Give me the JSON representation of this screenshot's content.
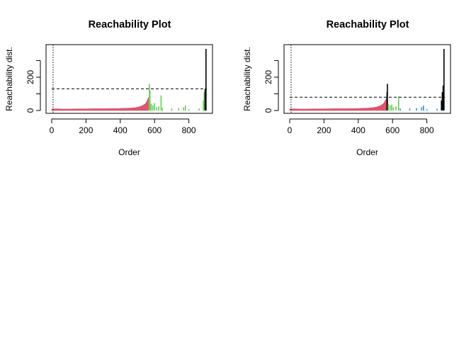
{
  "chart_data": [
    {
      "type": "bar",
      "title": "Reachability Plot",
      "xlabel": "Order",
      "ylabel": "Reachability dist.",
      "xlim": [
        0,
        905
      ],
      "ylim": [
        0,
        370
      ],
      "x_ticks": [
        0,
        200,
        400,
        600,
        800
      ],
      "y_ticks": [
        0,
        200
      ],
      "y_minor_ticks": [
        100,
        300
      ],
      "threshold": 130,
      "colors": {
        "cluster1": "#DF536B",
        "cluster2": "#61D04F",
        "noise": "#000000"
      },
      "profile": [
        [
          0,
          10
        ],
        [
          40,
          10
        ],
        [
          60,
          9
        ],
        [
          100,
          9
        ],
        [
          140,
          10
        ],
        [
          200,
          10
        ],
        [
          260,
          11
        ],
        [
          320,
          11
        ],
        [
          380,
          12
        ],
        [
          420,
          13
        ],
        [
          460,
          15
        ],
        [
          490,
          18
        ],
        [
          510,
          22
        ],
        [
          530,
          30
        ],
        [
          545,
          40
        ],
        [
          555,
          55
        ],
        [
          565,
          80
        ]
      ],
      "bars": [
        {
          "x": 570,
          "y": 160,
          "color": "cluster2"
        },
        {
          "x": 573,
          "y": 120,
          "color": "cluster2"
        },
        {
          "x": 580,
          "y": 40,
          "color": "cluster2"
        },
        {
          "x": 590,
          "y": 30,
          "color": "cluster2"
        },
        {
          "x": 600,
          "y": 45,
          "color": "cluster2"
        },
        {
          "x": 612,
          "y": 20,
          "color": "cluster2"
        },
        {
          "x": 625,
          "y": 25,
          "color": "cluster2"
        },
        {
          "x": 638,
          "y": 90,
          "color": "cluster2"
        },
        {
          "x": 645,
          "y": 15,
          "color": "cluster2"
        },
        {
          "x": 700,
          "y": 12,
          "color": "cluster2"
        },
        {
          "x": 740,
          "y": 14,
          "color": "cluster2"
        },
        {
          "x": 770,
          "y": 20,
          "color": "cluster2"
        },
        {
          "x": 780,
          "y": 30,
          "color": "cluster2"
        },
        {
          "x": 800,
          "y": 8,
          "color": "cluster2"
        },
        {
          "x": 860,
          "y": 12,
          "color": "cluster2"
        },
        {
          "x": 885,
          "y": 60,
          "color": "cluster2"
        },
        {
          "x": 890,
          "y": 110,
          "color": "cluster2"
        },
        {
          "x": 895,
          "y": 130,
          "color": "noise"
        },
        {
          "x": 900,
          "y": 370,
          "color": "noise"
        }
      ]
    },
    {
      "type": "bar",
      "title": "Reachability Plot",
      "xlabel": "Order",
      "ylabel": "Reachability dist.",
      "xlim": [
        0,
        905
      ],
      "ylim": [
        0,
        370
      ],
      "x_ticks": [
        0,
        200,
        400,
        600,
        800
      ],
      "y_ticks": [
        0,
        200
      ],
      "y_minor_ticks": [
        100,
        300
      ],
      "threshold": 80,
      "colors": {
        "cluster1": "#DF536B",
        "cluster2": "#61D04F",
        "cluster3": "#2297E6",
        "noise": "#000000"
      },
      "profile": [
        [
          0,
          10
        ],
        [
          40,
          10
        ],
        [
          60,
          9
        ],
        [
          100,
          9
        ],
        [
          140,
          10
        ],
        [
          200,
          10
        ],
        [
          260,
          11
        ],
        [
          320,
          11
        ],
        [
          380,
          12
        ],
        [
          420,
          13
        ],
        [
          460,
          15
        ],
        [
          490,
          18
        ],
        [
          510,
          22
        ],
        [
          530,
          30
        ],
        [
          545,
          40
        ],
        [
          555,
          55
        ],
        [
          565,
          75
        ]
      ],
      "bars": [
        {
          "x": 568,
          "y": 110,
          "color": "noise"
        },
        {
          "x": 570,
          "y": 160,
          "color": "noise"
        },
        {
          "x": 575,
          "y": 40,
          "color": "cluster2"
        },
        {
          "x": 585,
          "y": 30,
          "color": "cluster2"
        },
        {
          "x": 595,
          "y": 35,
          "color": "cluster2"
        },
        {
          "x": 605,
          "y": 20,
          "color": "cluster2"
        },
        {
          "x": 620,
          "y": 25,
          "color": "cluster2"
        },
        {
          "x": 635,
          "y": 85,
          "color": "cluster2"
        },
        {
          "x": 645,
          "y": 12,
          "color": "cluster3"
        },
        {
          "x": 700,
          "y": 12,
          "color": "cluster3"
        },
        {
          "x": 740,
          "y": 14,
          "color": "cluster3"
        },
        {
          "x": 770,
          "y": 20,
          "color": "cluster3"
        },
        {
          "x": 780,
          "y": 30,
          "color": "cluster3"
        },
        {
          "x": 800,
          "y": 8,
          "color": "cluster3"
        },
        {
          "x": 860,
          "y": 10,
          "color": "cluster3"
        },
        {
          "x": 885,
          "y": 60,
          "color": "noise"
        },
        {
          "x": 890,
          "y": 110,
          "color": "noise"
        },
        {
          "x": 895,
          "y": 150,
          "color": "noise"
        },
        {
          "x": 900,
          "y": 370,
          "color": "noise"
        }
      ]
    }
  ]
}
